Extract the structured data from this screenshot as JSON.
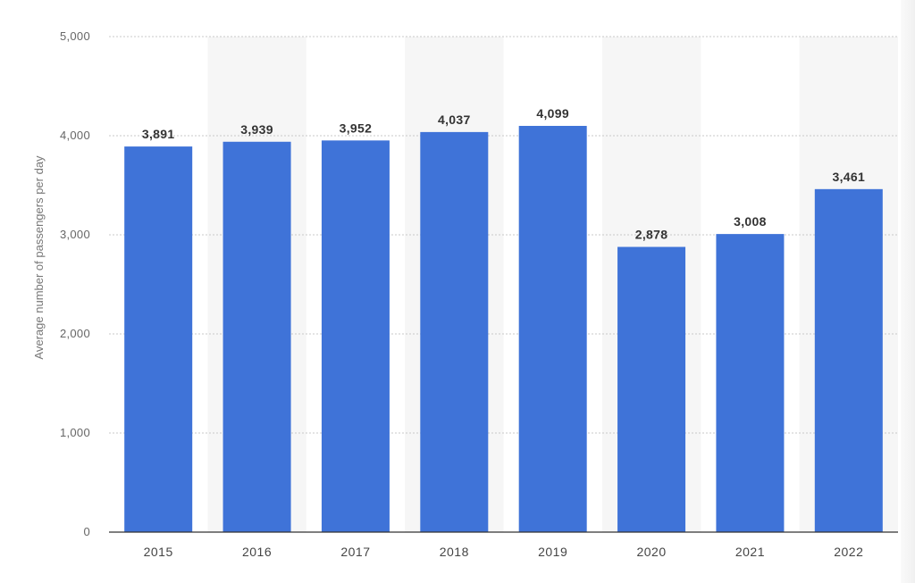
{
  "chart_data": {
    "type": "bar",
    "title": "",
    "xlabel": "",
    "ylabel": "Average number of passengers per day",
    "categories": [
      "2015",
      "2016",
      "2017",
      "2018",
      "2019",
      "2020",
      "2021",
      "2022"
    ],
    "values": [
      3891,
      3939,
      3952,
      4037,
      4099,
      2878,
      3008,
      3461
    ],
    "value_labels": [
      "3,891",
      "3,939",
      "3,952",
      "4,037",
      "4,099",
      "2,878",
      "3,008",
      "3,461"
    ],
    "ylim": [
      0,
      5000
    ],
    "yticks": [
      "0",
      "1,000",
      "2,000",
      "3,000",
      "4,000",
      "5,000"
    ],
    "grid": true,
    "legend": "none",
    "colors": {
      "bar": "#3f73d8",
      "band": "#f6f6f6",
      "grid": "#c8c8c8",
      "axis": "#333333"
    }
  }
}
